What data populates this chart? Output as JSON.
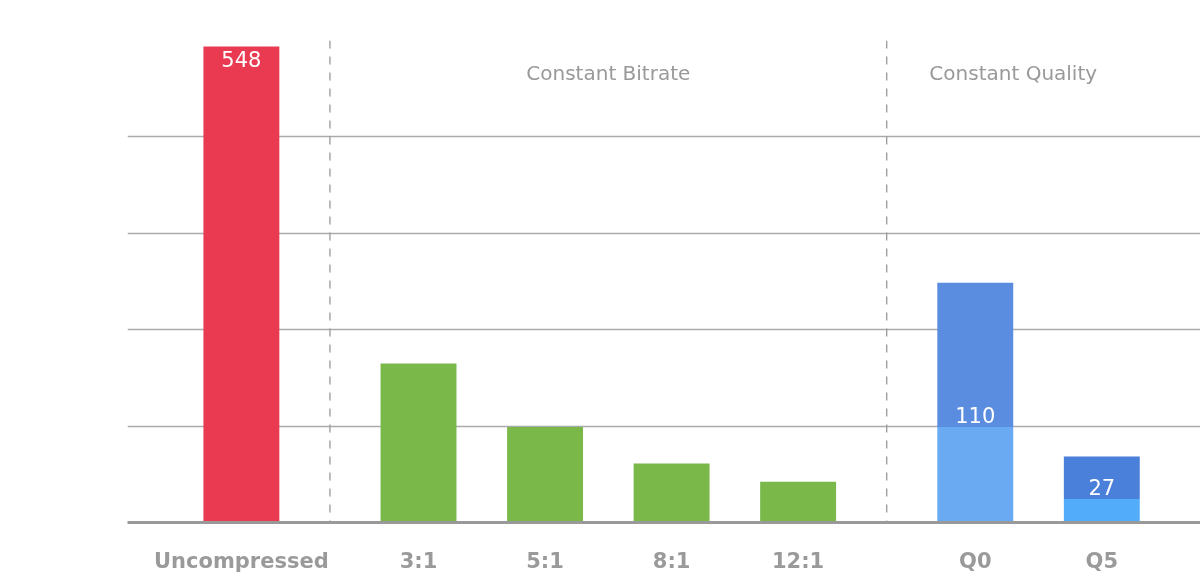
{
  "chart_data": {
    "type": "bar",
    "stacked": true,
    "categories": [
      "Uncompressed",
      "3:1",
      "5:1",
      "8:1",
      "12:1",
      "Q0",
      "Q5"
    ],
    "series": [
      {
        "colors": [
          "#ea3a52",
          "#7ab84a",
          "#7ab84a",
          "#7ab84a",
          "#7ab84a",
          "#6aaaf2",
          "#52acfa"
        ],
        "values": [
          548,
          183,
          110,
          68,
          47,
          110,
          27
        ],
        "value_labels": [
          "548",
          null,
          null,
          null,
          null,
          "110",
          "27"
        ]
      },
      {
        "colors": [
          null,
          null,
          null,
          null,
          null,
          "#5a8ce0",
          "#4a80da"
        ],
        "values": [
          null,
          null,
          null,
          null,
          null,
          166,
          49
        ]
      }
    ],
    "ylim": [
      0,
      555
    ],
    "tick_labels": "x",
    "grid": "y",
    "annotations": [
      "Constant Bitrate",
      "Constant Quality"
    ]
  }
}
